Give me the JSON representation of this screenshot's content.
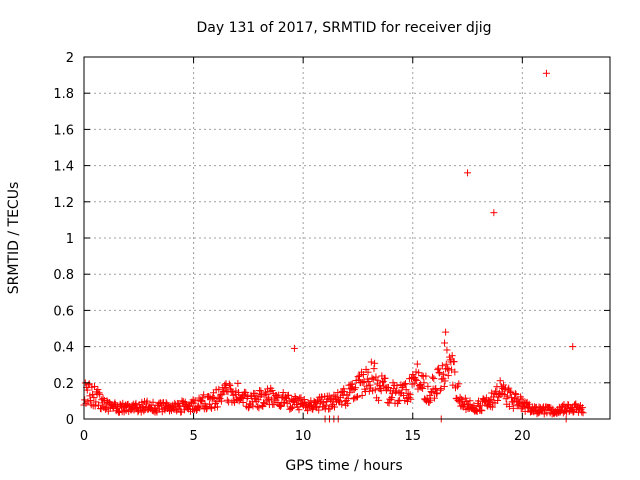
{
  "chart_data": {
    "type": "scatter",
    "title": "Day 131 of 2017, SRMTID for receiver djig",
    "xlabel": "GPS time / hours",
    "ylabel": "SRMTID / TECUs",
    "xlim": [
      0,
      24
    ],
    "ylim": [
      0,
      2
    ],
    "x_ticks": [
      0,
      5,
      10,
      15,
      20
    ],
    "x_tick_labels": [
      "0",
      "5",
      "10",
      "15",
      "20"
    ],
    "y_ticks": [
      0,
      0.2,
      0.4,
      0.6,
      0.8,
      1,
      1.2,
      1.4,
      1.6,
      1.8,
      2
    ],
    "y_tick_labels": [
      "0",
      "0.2",
      "0.4",
      "0.6",
      "0.8",
      "1",
      "1.2",
      "1.4",
      "1.6",
      "1.8",
      "2"
    ],
    "grid": true,
    "marker": "+",
    "color": "#ff0000",
    "outliers": [
      {
        "x": 9.6,
        "y": 0.39
      },
      {
        "x": 16.5,
        "y": 0.48
      },
      {
        "x": 16.45,
        "y": 0.42
      },
      {
        "x": 17.5,
        "y": 1.36
      },
      {
        "x": 18.7,
        "y": 1.14
      },
      {
        "x": 21.1,
        "y": 1.91
      },
      {
        "x": 22.3,
        "y": 0.4
      },
      {
        "x": 11.0,
        "y": 0.0
      },
      {
        "x": 11.2,
        "y": 0.0
      },
      {
        "x": 11.4,
        "y": 0.0
      },
      {
        "x": 11.6,
        "y": 0.0
      },
      {
        "x": 16.3,
        "y": 0.0
      },
      {
        "x": 22.0,
        "y": 0.0
      }
    ],
    "baseline_profile": [
      {
        "x": 0.0,
        "y": 0.14
      },
      {
        "x": 0.5,
        "y": 0.13
      },
      {
        "x": 1.0,
        "y": 0.07
      },
      {
        "x": 2.0,
        "y": 0.06
      },
      {
        "x": 3.0,
        "y": 0.07
      },
      {
        "x": 4.0,
        "y": 0.06
      },
      {
        "x": 5.0,
        "y": 0.08
      },
      {
        "x": 6.0,
        "y": 0.11
      },
      {
        "x": 6.7,
        "y": 0.16
      },
      {
        "x": 7.5,
        "y": 0.1
      },
      {
        "x": 8.5,
        "y": 0.12
      },
      {
        "x": 9.5,
        "y": 0.09
      },
      {
        "x": 10.5,
        "y": 0.08
      },
      {
        "x": 11.5,
        "y": 0.1
      },
      {
        "x": 12.5,
        "y": 0.16
      },
      {
        "x": 13.0,
        "y": 0.26
      },
      {
        "x": 13.5,
        "y": 0.17
      },
      {
        "x": 14.0,
        "y": 0.15
      },
      {
        "x": 14.5,
        "y": 0.14
      },
      {
        "x": 15.2,
        "y": 0.22
      },
      {
        "x": 15.8,
        "y": 0.16
      },
      {
        "x": 16.3,
        "y": 0.21
      },
      {
        "x": 16.7,
        "y": 0.3
      },
      {
        "x": 17.2,
        "y": 0.1
      },
      {
        "x": 17.8,
        "y": 0.06
      },
      {
        "x": 18.5,
        "y": 0.1
      },
      {
        "x": 19.0,
        "y": 0.16
      },
      {
        "x": 19.5,
        "y": 0.11
      },
      {
        "x": 20.0,
        "y": 0.08
      },
      {
        "x": 20.5,
        "y": 0.05
      },
      {
        "x": 21.5,
        "y": 0.05
      },
      {
        "x": 22.2,
        "y": 0.06
      },
      {
        "x": 22.8,
        "y": 0.06
      }
    ]
  }
}
